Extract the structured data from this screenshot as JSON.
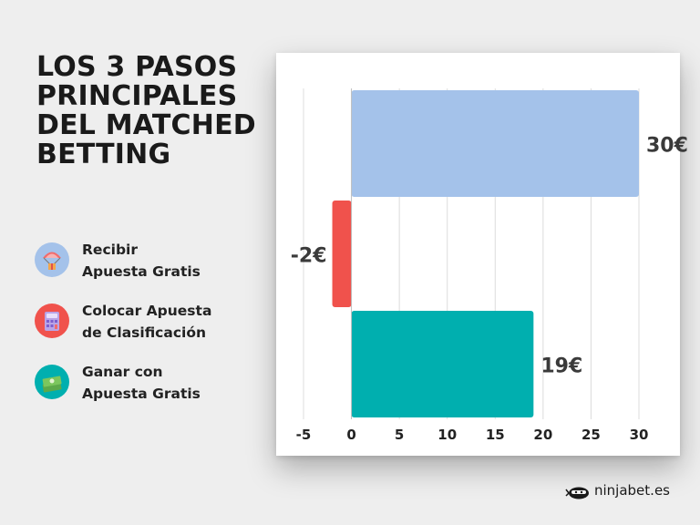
{
  "title": "LOS 3 PASOS PRINCIPALES DEL MATCHED BETTING",
  "legend": [
    {
      "label": "Recibir\nApuesta Gratis",
      "icon": "gift-parachute-icon",
      "color": "#a4c2ea"
    },
    {
      "label": "Colocar Apuesta\nde Clasificación",
      "icon": "calculator-icon",
      "color": "#f0524c"
    },
    {
      "label": "Ganar con\nApuesta Gratis",
      "icon": "money-stack-icon",
      "color": "#00afaf"
    }
  ],
  "chart_data": {
    "type": "bar",
    "orientation": "horizontal",
    "title": "",
    "xlabel": "",
    "ylabel": "",
    "xlim": [
      -5,
      30
    ],
    "ticks": [
      -5,
      0,
      5,
      10,
      15,
      20,
      25,
      30
    ],
    "grid": "vertical",
    "bars": [
      {
        "value": 30,
        "label": "30€",
        "color": "#a4c2ea"
      },
      {
        "value": -2,
        "label": "-2€",
        "color": "#f0524c"
      },
      {
        "value": 19,
        "label": "19€",
        "color": "#00afaf"
      }
    ]
  },
  "brand": {
    "text": "ninjabet.es",
    "icon": "ninja-logo-icon"
  }
}
